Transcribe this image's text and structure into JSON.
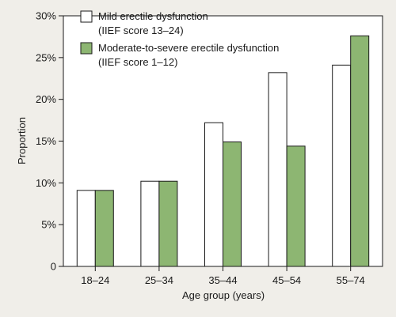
{
  "chart_data": {
    "type": "bar",
    "title": "",
    "xlabel": "Age group (years)",
    "ylabel": "Proportion",
    "categories": [
      "18–24",
      "25–34",
      "35–44",
      "45–54",
      "55–74"
    ],
    "series": [
      {
        "name": "Mild erectile dysfunction",
        "name_line2": "(IIEF score 13–24)",
        "color": "#ffffff",
        "values": [
          9.1,
          10.2,
          17.2,
          23.2,
          24.1
        ]
      },
      {
        "name": "Moderate-to-severe erectile dysfunction",
        "name_line2": "(IIEF score 1–12)",
        "color": "#8db672",
        "values": [
          9.1,
          10.2,
          14.9,
          14.4,
          27.6
        ]
      }
    ],
    "ylim": [
      0,
      30
    ],
    "yticks": [
      0,
      5,
      10,
      15,
      20,
      25,
      30
    ],
    "ytick_labels": [
      "0",
      "5%",
      "10%",
      "15%",
      "20%",
      "25%",
      "30%"
    ],
    "legend_position": "top-left",
    "grid": false,
    "colors": {
      "background": "#f0eee9",
      "plot_background": "#ffffff",
      "axis": "#1a1a1a"
    }
  }
}
